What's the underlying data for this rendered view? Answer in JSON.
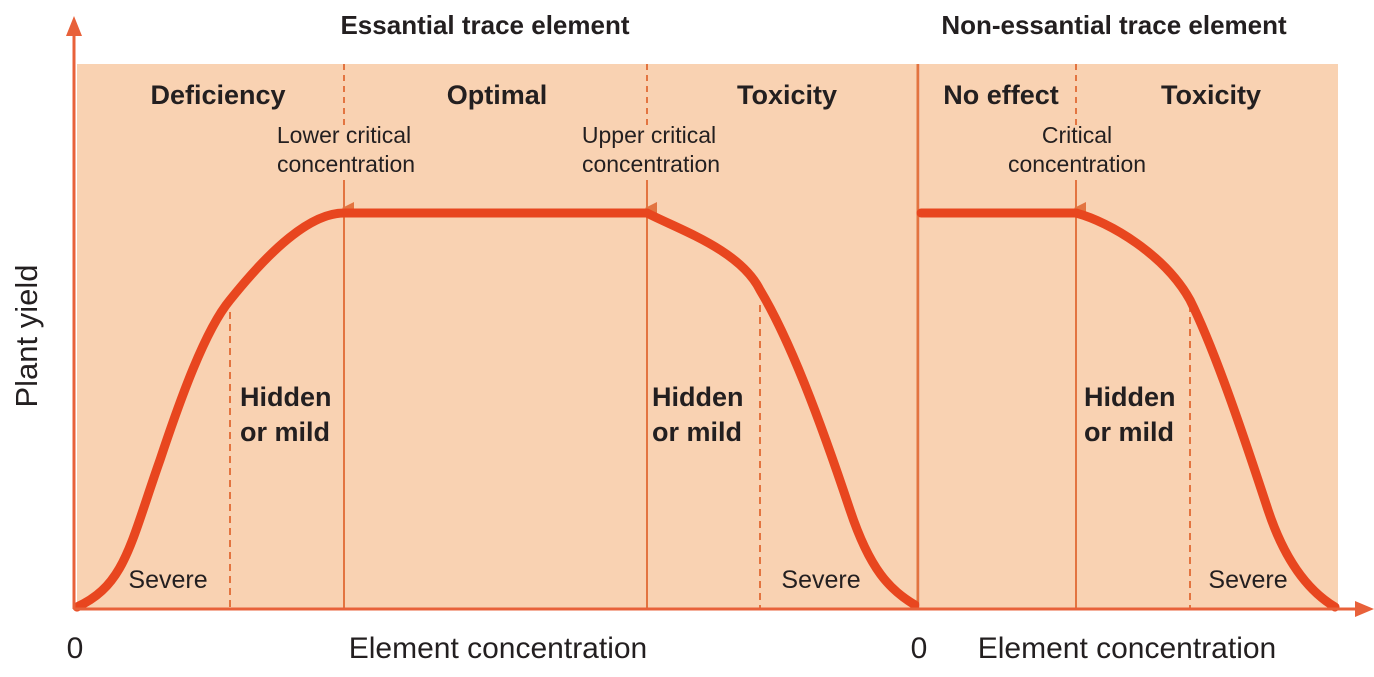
{
  "colors": {
    "background_shading": "#f9d2b2",
    "axis": "#e8613a",
    "curve": "#e8461f",
    "boundary": "#e37440",
    "text": "#231f20"
  },
  "y_axis_label": "Plant yield",
  "essential": {
    "title": "Essantial trace element",
    "zones": {
      "deficiency": "Deficiency",
      "optimal": "Optimal",
      "toxicity": "Toxicity"
    },
    "lower_critical": {
      "line1": "Lower critical",
      "line2": "concentration"
    },
    "upper_critical": {
      "line1": "Upper critical",
      "line2": "concentration"
    },
    "hidden_left": {
      "line1": "Hidden",
      "line2": "or mild"
    },
    "hidden_right": {
      "line1": "Hidden",
      "line2": "or mild"
    },
    "severe_left": "Severe",
    "severe_right": "Severe",
    "origin": "0",
    "x_axis_label": "Element concentration"
  },
  "non_essential": {
    "title": "Non-essantial trace element",
    "zones": {
      "no_effect": "No effect",
      "toxicity": "Toxicity"
    },
    "critical": {
      "line1": "Critical",
      "line2": "concentration"
    },
    "hidden": {
      "line1": "Hidden",
      "line2": "or mild"
    },
    "severe": "Severe",
    "origin": "0",
    "x_axis_label": "Element concentration"
  }
}
